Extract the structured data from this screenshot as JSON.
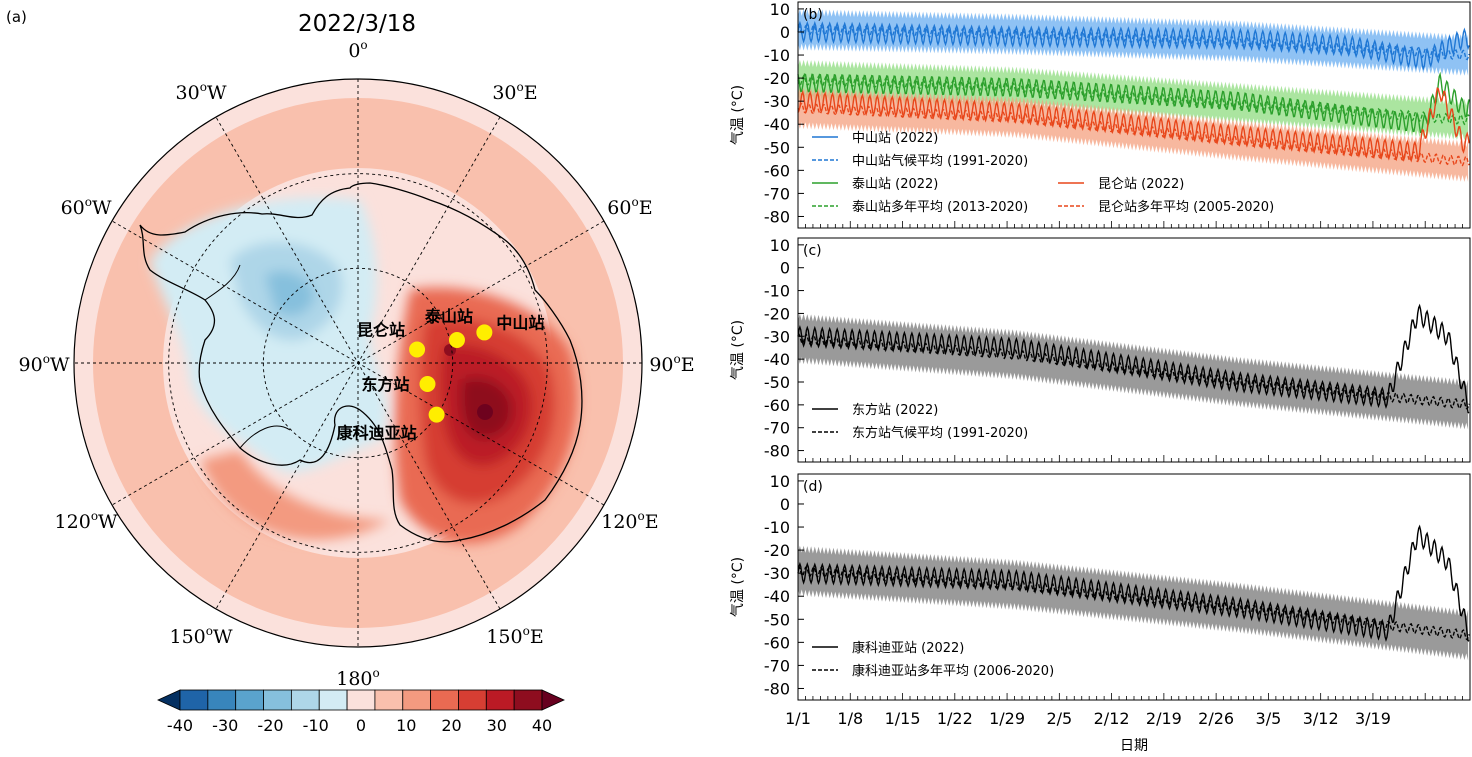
{
  "map": {
    "panel_label": "(a)",
    "title": "2022/3/18",
    "lon_labels": [
      {
        "deg": 0,
        "text": "0",
        "sup": "o"
      },
      {
        "deg": 30,
        "text": "30",
        "sup": "o",
        "suffix": "E"
      },
      {
        "deg": 60,
        "text": "60",
        "sup": "o",
        "suffix": "E"
      },
      {
        "deg": 90,
        "text": "90",
        "sup": "o",
        "suffix": "E"
      },
      {
        "deg": 120,
        "text": "120",
        "sup": "o",
        "suffix": "E"
      },
      {
        "deg": 150,
        "text": "150",
        "sup": "o",
        "suffix": "E"
      },
      {
        "deg": 180,
        "text": "180",
        "sup": "o"
      },
      {
        "deg": -150,
        "text": "150",
        "sup": "o",
        "suffix": "W"
      },
      {
        "deg": -120,
        "text": "120",
        "sup": "o",
        "suffix": "W"
      },
      {
        "deg": -90,
        "text": "90",
        "sup": "o",
        "suffix": "W"
      },
      {
        "deg": -60,
        "text": "60",
        "sup": "o",
        "suffix": "W"
      },
      {
        "deg": -30,
        "text": "30",
        "sup": "o",
        "suffix": "W"
      }
    ],
    "stations": [
      {
        "name": "中山站",
        "lon": 76.4,
        "lat": -69.4
      },
      {
        "name": "泰山站",
        "lon": 76.9,
        "lat": -73.9
      },
      {
        "name": "昆仑站",
        "lon": 77.1,
        "lat": -80.4
      },
      {
        "name": "东方站",
        "lon": 106.8,
        "lat": -78.5
      },
      {
        "name": "康科迪亚站",
        "lon": 123.3,
        "lat": -75.1
      }
    ],
    "colorbar": {
      "ticks": [
        "-40",
        "-30",
        "-20",
        "-10",
        "0",
        "10",
        "20",
        "30",
        "40"
      ],
      "colors": [
        "#053061",
        "#1f64a8",
        "#3885bc",
        "#5aa3cd",
        "#86c0dd",
        "#aed6e8",
        "#d3ecf4",
        "#fbe1dc",
        "#f9c0ad",
        "#f39a80",
        "#e96a52",
        "#d63e33",
        "#bb1a25",
        "#8e0d1f",
        "#67001f"
      ]
    }
  },
  "chart_data": [
    {
      "type": "line",
      "panel_label": "(b)",
      "ylabel": "气温 (°C)",
      "ylim": [
        -85,
        13
      ],
      "yticks": [
        "10",
        "0",
        "-10",
        "-20",
        "-30",
        "-40",
        "-50",
        "-60",
        "-70",
        "-80"
      ],
      "x_days": [
        1,
        91
      ],
      "series": [
        {
          "name": "中山站 (2022)",
          "style": "solid",
          "color": "#1f77d4",
          "values": [
            {
              "day": 1,
              "y": 0
            },
            {
              "day": 30,
              "y": -2
            },
            {
              "day": 60,
              "y": -3
            },
            {
              "day": 75,
              "y": -6
            },
            {
              "day": 85,
              "y": -12
            },
            {
              "day": 90,
              "y": -3
            }
          ]
        },
        {
          "name": "中山站气候平均 (1991-2020)",
          "style": "dashed",
          "color": "#1f77d4",
          "values": [
            {
              "day": 1,
              "y": 1
            },
            {
              "day": 30,
              "y": -1
            },
            {
              "day": 60,
              "y": -4
            },
            {
              "day": 90,
              "y": -10
            }
          ]
        },
        {
          "name": "泰山站 (2022)",
          "style": "solid",
          "color": "#2ca02c",
          "values": [
            {
              "day": 1,
              "y": -22
            },
            {
              "day": 30,
              "y": -24
            },
            {
              "day": 60,
              "y": -30
            },
            {
              "day": 85,
              "y": -40
            },
            {
              "day": 87,
              "y": -22
            },
            {
              "day": 90,
              "y": -33
            }
          ]
        },
        {
          "name": "泰山站多年平均 (2013-2020)",
          "style": "dashed",
          "color": "#2ca02c",
          "values": [
            {
              "day": 1,
              "y": -21
            },
            {
              "day": 30,
              "y": -24
            },
            {
              "day": 60,
              "y": -31
            },
            {
              "day": 90,
              "y": -38
            }
          ]
        },
        {
          "name": "昆仑站 (2022)",
          "style": "solid",
          "color": "#e8461a",
          "values": [
            {
              "day": 1,
              "y": -30
            },
            {
              "day": 30,
              "y": -35
            },
            {
              "day": 60,
              "y": -45
            },
            {
              "day": 84,
              "y": -52
            },
            {
              "day": 87,
              "y": -25
            },
            {
              "day": 90,
              "y": -48
            }
          ]
        },
        {
          "name": "昆仑站多年平均 (2005-2020)",
          "style": "dashed",
          "color": "#e8461a",
          "values": [
            {
              "day": 1,
              "y": -33
            },
            {
              "day": 30,
              "y": -37
            },
            {
              "day": 60,
              "y": -47
            },
            {
              "day": 90,
              "y": -56
            }
          ]
        }
      ]
    },
    {
      "type": "line",
      "panel_label": "(c)",
      "ylabel": "气温 (°C)",
      "ylim": [
        -85,
        13
      ],
      "yticks": [
        "10",
        "0",
        "-10",
        "-20",
        "-30",
        "-40",
        "-50",
        "-60",
        "-70",
        "-80"
      ],
      "x_days": [
        1,
        91
      ],
      "series": [
        {
          "name": "东方站 (2022)",
          "style": "solid",
          "color": "#000000",
          "values": [
            {
              "day": 1,
              "y": -30
            },
            {
              "day": 30,
              "y": -35
            },
            {
              "day": 60,
              "y": -50
            },
            {
              "day": 80,
              "y": -57
            },
            {
              "day": 84,
              "y": -20
            },
            {
              "day": 88,
              "y": -30
            },
            {
              "day": 91,
              "y": -62
            }
          ]
        },
        {
          "name": "东方站气候平均 (1991-2020)",
          "style": "dashed",
          "color": "#000000",
          "values": [
            {
              "day": 1,
              "y": -31
            },
            {
              "day": 30,
              "y": -38
            },
            {
              "day": 60,
              "y": -50
            },
            {
              "day": 91,
              "y": -60
            }
          ]
        }
      ]
    },
    {
      "type": "line",
      "panel_label": "(d)",
      "ylabel": "气温 (°C)",
      "ylim": [
        -85,
        13
      ],
      "yticks": [
        "10",
        "0",
        "-10",
        "-20",
        "-30",
        "-40",
        "-50",
        "-60",
        "-70",
        "-80"
      ],
      "xticks": [
        "1/1",
        "1/8",
        "1/15",
        "1/22",
        "1/29",
        "2/5",
        "2/12",
        "2/19",
        "2/26",
        "3/5",
        "3/12",
        "3/19"
      ],
      "xlabel": "日期",
      "x_days": [
        1,
        91
      ],
      "series": [
        {
          "name": "康科迪亚站 (2022)",
          "style": "solid",
          "color": "#000000",
          "values": [
            {
              "day": 1,
              "y": -30
            },
            {
              "day": 30,
              "y": -33
            },
            {
              "day": 60,
              "y": -45
            },
            {
              "day": 80,
              "y": -55
            },
            {
              "day": 84,
              "y": -13
            },
            {
              "day": 88,
              "y": -25
            },
            {
              "day": 91,
              "y": -58
            }
          ]
        },
        {
          "name": "康科迪亚站多年平均 (2006-2020)",
          "style": "dashed",
          "color": "#000000",
          "values": [
            {
              "day": 1,
              "y": -29
            },
            {
              "day": 30,
              "y": -35
            },
            {
              "day": 60,
              "y": -45
            },
            {
              "day": 91,
              "y": -57
            }
          ]
        }
      ]
    }
  ]
}
